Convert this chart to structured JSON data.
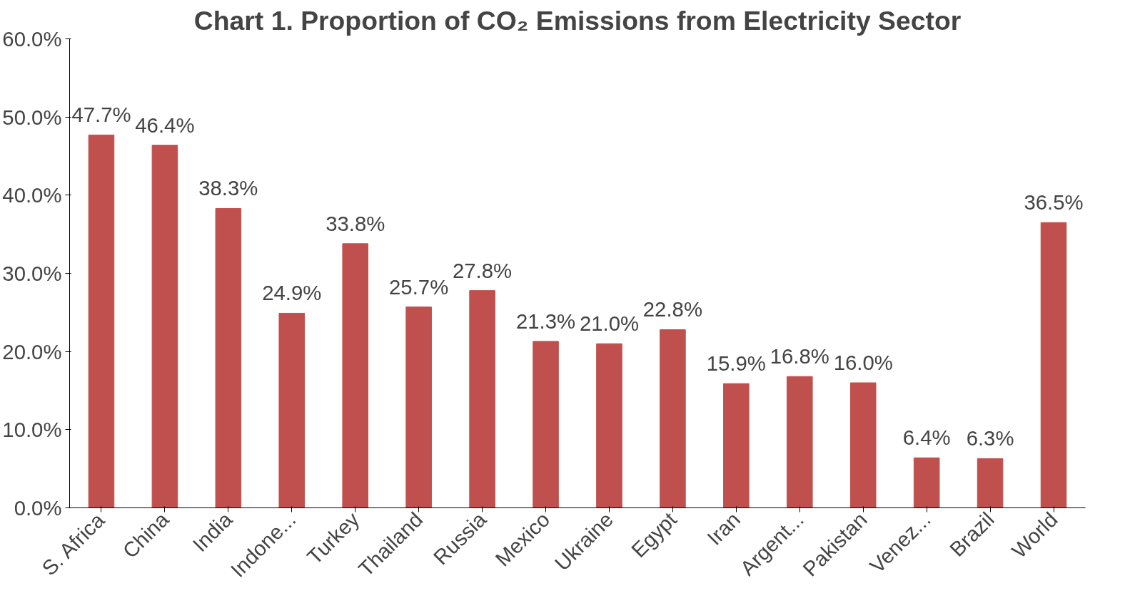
{
  "chart_data": {
    "type": "bar",
    "title": "Chart 1. Proportion of CO₂ Emissions from Electricity Sector",
    "categories": [
      "S. Africa",
      "China",
      "India",
      "Indone...",
      "Turkey",
      "Thailand",
      "Russia",
      "Mexico",
      "Ukraine",
      "Egypt",
      "Iran",
      "Argent...",
      "Pakistan",
      "Venez...",
      "Brazil",
      "World"
    ],
    "values": [
      47.7,
      46.4,
      38.3,
      24.9,
      33.8,
      25.7,
      27.8,
      21.3,
      21.0,
      22.8,
      15.9,
      16.8,
      16.0,
      6.4,
      6.3,
      36.5
    ],
    "value_labels": [
      "47.7%",
      "46.4%",
      "38.3%",
      "24.9%",
      "33.8%",
      "25.7%",
      "27.8%",
      "21.3%",
      "21.0%",
      "22.8%",
      "15.9%",
      "16.8%",
      "16.0%",
      "6.4%",
      "6.3%",
      "36.5%"
    ],
    "color": "#c0504d",
    "ylim": [
      0,
      60
    ],
    "yticks": [
      {
        "value": 0,
        "label": "0.0%"
      },
      {
        "value": 10,
        "label": "10.0%"
      },
      {
        "value": 20,
        "label": "20.0%"
      },
      {
        "value": 30,
        "label": "30.0%"
      },
      {
        "value": 40,
        "label": "40.0%"
      },
      {
        "value": 50,
        "label": "50.0%"
      },
      {
        "value": 60,
        "label": "60.0%"
      }
    ],
    "grid": false
  }
}
